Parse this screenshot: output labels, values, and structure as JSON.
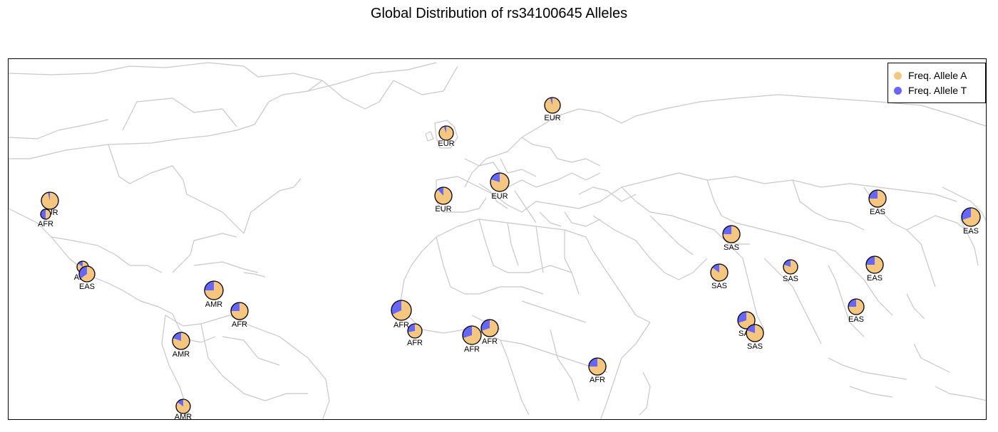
{
  "title": "Global Distribution of rs34100645 Alleles",
  "legend": {
    "placement": "top-right",
    "items": [
      {
        "label": "Freq. Allele A",
        "color": "#f5c77e"
      },
      {
        "label": "Freq. Allele T",
        "color": "#6666ff"
      }
    ]
  },
  "map": {
    "type": "world-political",
    "land_border_color": "#c8c8c8",
    "background": "#ffffff"
  },
  "populations": [
    {
      "label": "EUR",
      "allele_t_fraction": 0.05
    },
    {
      "label": "EUR",
      "allele_t_fraction": 0.06
    },
    {
      "label": "EUR",
      "allele_t_fraction": 0.12
    },
    {
      "label": "EUR",
      "allele_t_fraction": 0.2
    },
    {
      "label": "EUR",
      "allele_t_fraction": 0.04
    },
    {
      "label": "AFR",
      "allele_t_fraction": 0.5
    },
    {
      "label": "AMR",
      "allele_t_fraction": 0.15
    },
    {
      "label": "EAS",
      "allele_t_fraction": 0.35
    },
    {
      "label": "AMR",
      "allele_t_fraction": 0.25
    },
    {
      "label": "AFR",
      "allele_t_fraction": 0.25
    },
    {
      "label": "AMR",
      "allele_t_fraction": 0.2
    },
    {
      "label": "AMR",
      "allele_t_fraction": 0.15
    },
    {
      "label": "AFR",
      "allele_t_fraction": 0.32
    },
    {
      "label": "AFR",
      "allele_t_fraction": 0.28
    },
    {
      "label": "AFR",
      "allele_t_fraction": 0.3
    },
    {
      "label": "AFR",
      "allele_t_fraction": 0.3
    },
    {
      "label": "AFR",
      "allele_t_fraction": 0.25
    },
    {
      "label": "SAS",
      "allele_t_fraction": 0.25
    },
    {
      "label": "SAS",
      "allele_t_fraction": 0.15
    },
    {
      "label": "SAS",
      "allele_t_fraction": 0.2
    },
    {
      "label": "SAS",
      "allele_t_fraction": 0.3
    },
    {
      "label": "SAS",
      "allele_t_fraction": 0.2
    },
    {
      "label": "EAS",
      "allele_t_fraction": 0.25
    },
    {
      "label": "EAS",
      "allele_t_fraction": 0.3
    },
    {
      "label": "EAS",
      "allele_t_fraction": 0.25
    },
    {
      "label": "EAS",
      "allele_t_fraction": 0.25
    }
  ]
}
